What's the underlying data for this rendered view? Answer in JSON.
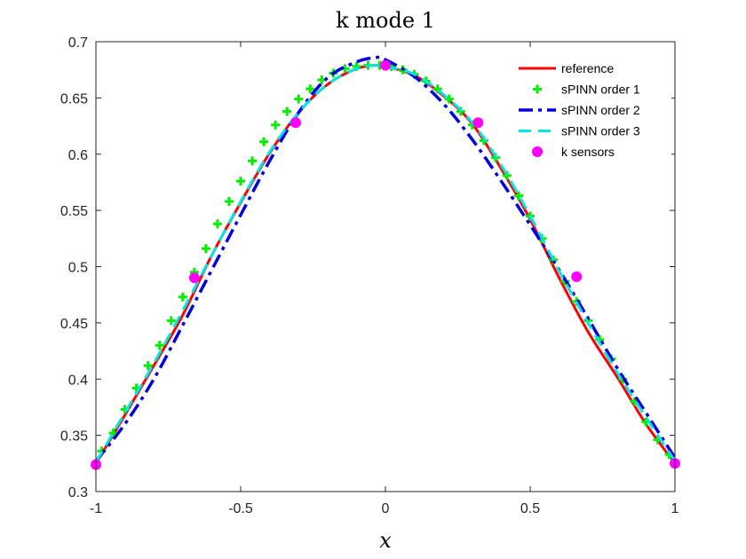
{
  "chart_data": {
    "type": "line",
    "title": "k mode 1",
    "xlabel": "x",
    "ylabel": "",
    "xlim": [
      -1,
      1
    ],
    "ylim": [
      0.3,
      0.7
    ],
    "xticks": [
      "-1",
      "-0.5",
      "0",
      "0.5",
      "1"
    ],
    "yticks": [
      "0.3",
      "0.35",
      "0.4",
      "0.45",
      "0.5",
      "0.55",
      "0.6",
      "0.65",
      "0.7"
    ],
    "grid": false,
    "legend_position": "top-right",
    "series": [
      {
        "name": "reference",
        "style": "solid",
        "color": "#ff0000",
        "x": [
          -1,
          -0.9,
          -0.8,
          -0.7,
          -0.6,
          -0.5,
          -0.4,
          -0.3,
          -0.2,
          -0.1,
          -0.03,
          0,
          0.1,
          0.2,
          0.3,
          0.4,
          0.5,
          0.6,
          0.7,
          0.8,
          0.9,
          1
        ],
        "y": [
          0.325,
          0.368,
          0.412,
          0.457,
          0.51,
          0.557,
          0.601,
          0.637,
          0.662,
          0.676,
          0.679,
          0.678,
          0.67,
          0.652,
          0.627,
          0.587,
          0.542,
          0.49,
          0.442,
          0.402,
          0.36,
          0.325
        ]
      },
      {
        "name": "sPINN order 1",
        "style": "plus",
        "color": "#00ee00",
        "x": [
          -0.98,
          -0.94,
          -0.9,
          -0.86,
          -0.82,
          -0.78,
          -0.74,
          -0.7,
          -0.66,
          -0.62,
          -0.58,
          -0.54,
          -0.5,
          -0.46,
          -0.42,
          -0.38,
          -0.34,
          -0.3,
          -0.26,
          -0.22,
          -0.18,
          -0.14,
          -0.1,
          -0.06,
          -0.02,
          0.02,
          0.06,
          0.1,
          0.14,
          0.18,
          0.22,
          0.26,
          0.3,
          0.34,
          0.38,
          0.42,
          0.46,
          0.5,
          0.54,
          0.58,
          0.62,
          0.66,
          0.7,
          0.74,
          0.78,
          0.82,
          0.86,
          0.9,
          0.94,
          0.98
        ],
        "y": [
          0.336,
          0.352,
          0.373,
          0.392,
          0.412,
          0.43,
          0.452,
          0.473,
          0.495,
          0.516,
          0.538,
          0.558,
          0.576,
          0.594,
          0.611,
          0.626,
          0.638,
          0.649,
          0.658,
          0.666,
          0.672,
          0.676,
          0.678,
          0.679,
          0.679,
          0.678,
          0.675,
          0.671,
          0.665,
          0.658,
          0.649,
          0.638,
          0.626,
          0.612,
          0.597,
          0.581,
          0.563,
          0.545,
          0.525,
          0.506,
          0.487,
          0.469,
          0.452,
          0.435,
          0.418,
          0.4,
          0.38,
          0.362,
          0.346,
          0.333
        ]
      },
      {
        "name": "sPINN order 2",
        "style": "dashdot",
        "color": "#0000dd",
        "x": [
          -1,
          -0.9,
          -0.8,
          -0.7,
          -0.6,
          -0.5,
          -0.4,
          -0.3,
          -0.2,
          -0.1,
          -0.03,
          0,
          0.1,
          0.2,
          0.3,
          0.4,
          0.5,
          0.6,
          0.7,
          0.8,
          0.9,
          1
        ],
        "y": [
          0.327,
          0.36,
          0.4,
          0.448,
          0.497,
          0.546,
          0.594,
          0.637,
          0.668,
          0.682,
          0.686,
          0.684,
          0.669,
          0.645,
          0.613,
          0.576,
          0.537,
          0.497,
          0.454,
          0.41,
          0.37,
          0.33
        ]
      },
      {
        "name": "sPINN order 3",
        "style": "dashed",
        "color": "#00e5e5",
        "x": [
          -1,
          -0.9,
          -0.8,
          -0.7,
          -0.6,
          -0.5,
          -0.4,
          -0.3,
          -0.2,
          -0.1,
          -0.03,
          0,
          0.1,
          0.2,
          0.3,
          0.4,
          0.5,
          0.6,
          0.7,
          0.8,
          0.9,
          1
        ],
        "y": [
          0.326,
          0.37,
          0.414,
          0.461,
          0.51,
          0.558,
          0.602,
          0.637,
          0.662,
          0.676,
          0.679,
          0.678,
          0.671,
          0.653,
          0.628,
          0.59,
          0.545,
          0.496,
          0.45,
          0.406,
          0.366,
          0.327
        ]
      },
      {
        "name": "k sensors",
        "style": "markers",
        "color": "#ff00ff",
        "x": [
          -1,
          -0.66,
          -0.31,
          0,
          0.32,
          0.66,
          1
        ],
        "y": [
          0.324,
          0.49,
          0.628,
          0.679,
          0.628,
          0.491,
          0.325
        ]
      }
    ]
  }
}
